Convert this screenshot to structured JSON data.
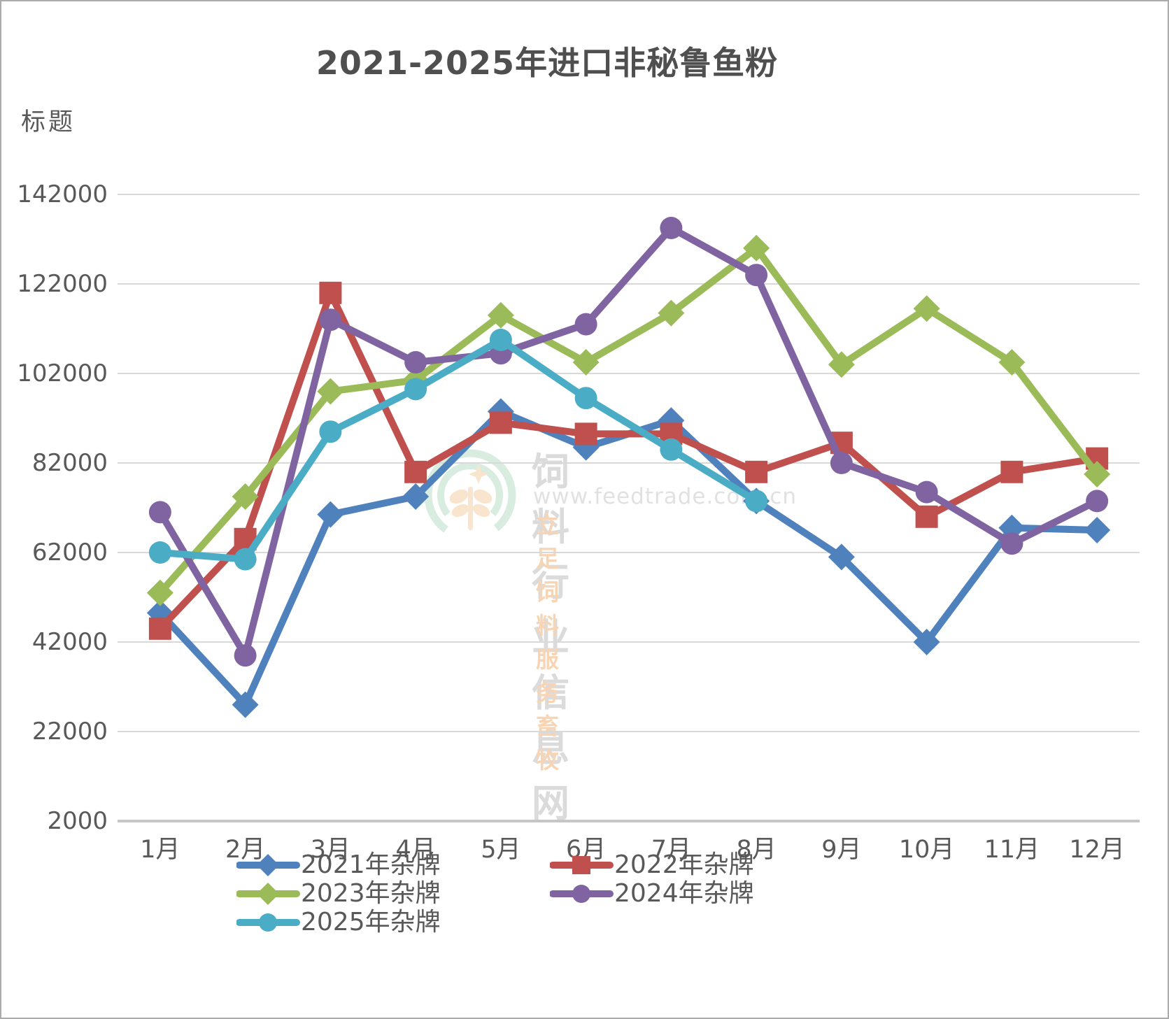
{
  "title": "2021-2025年进口非秘鲁鱼粉",
  "axis_title": "标题",
  "watermark": {
    "site_name": "饲料行业信息网",
    "url": "www.feedtrade.com.cn",
    "slogan": "立足饲料  服务畜牧"
  },
  "chart_data": {
    "type": "line",
    "title": "2021-2025年进口非秘鲁鱼粉",
    "xlabel": "",
    "ylabel": "标题",
    "categories": [
      "1月",
      "2月",
      "3月",
      "4月",
      "5月",
      "6月",
      "7月",
      "8月",
      "9月",
      "10月",
      "11月",
      "12月"
    ],
    "series": [
      {
        "name": "2021年杂牌",
        "color": "#4F81BD",
        "marker": "diamond",
        "values": [
          48500,
          28000,
          70500,
          74500,
          93500,
          85500,
          91500,
          73500,
          61000,
          42000,
          67500,
          67000
        ]
      },
      {
        "name": "2022年杂牌",
        "color": "#C0504D",
        "marker": "square",
        "values": [
          45000,
          65000,
          120000,
          80000,
          91000,
          88500,
          88500,
          80000,
          86500,
          70000,
          80000,
          83000
        ]
      },
      {
        "name": "2023年杂牌",
        "color": "#9BBB59",
        "marker": "diamond",
        "values": [
          53000,
          74500,
          98000,
          100500,
          115000,
          104500,
          115500,
          130000,
          104000,
          116500,
          104500,
          79500
        ]
      },
      {
        "name": "2024年杂牌",
        "color": "#8064A2",
        "marker": "circle",
        "values": [
          71000,
          39000,
          114000,
          104500,
          106500,
          113000,
          134500,
          124000,
          82000,
          75500,
          64000,
          73500
        ]
      },
      {
        "name": "2025年杂牌",
        "color": "#4BACC6",
        "marker": "circle",
        "values": [
          62000,
          60500,
          89000,
          98500,
          109500,
          96500,
          85000,
          73500
        ]
      }
    ],
    "ylim": [
      2000,
      142000
    ],
    "yticks": [
      2000,
      22000,
      42000,
      62000,
      82000,
      102000,
      122000,
      142000
    ],
    "grid": true,
    "legend_position": "bottom"
  }
}
